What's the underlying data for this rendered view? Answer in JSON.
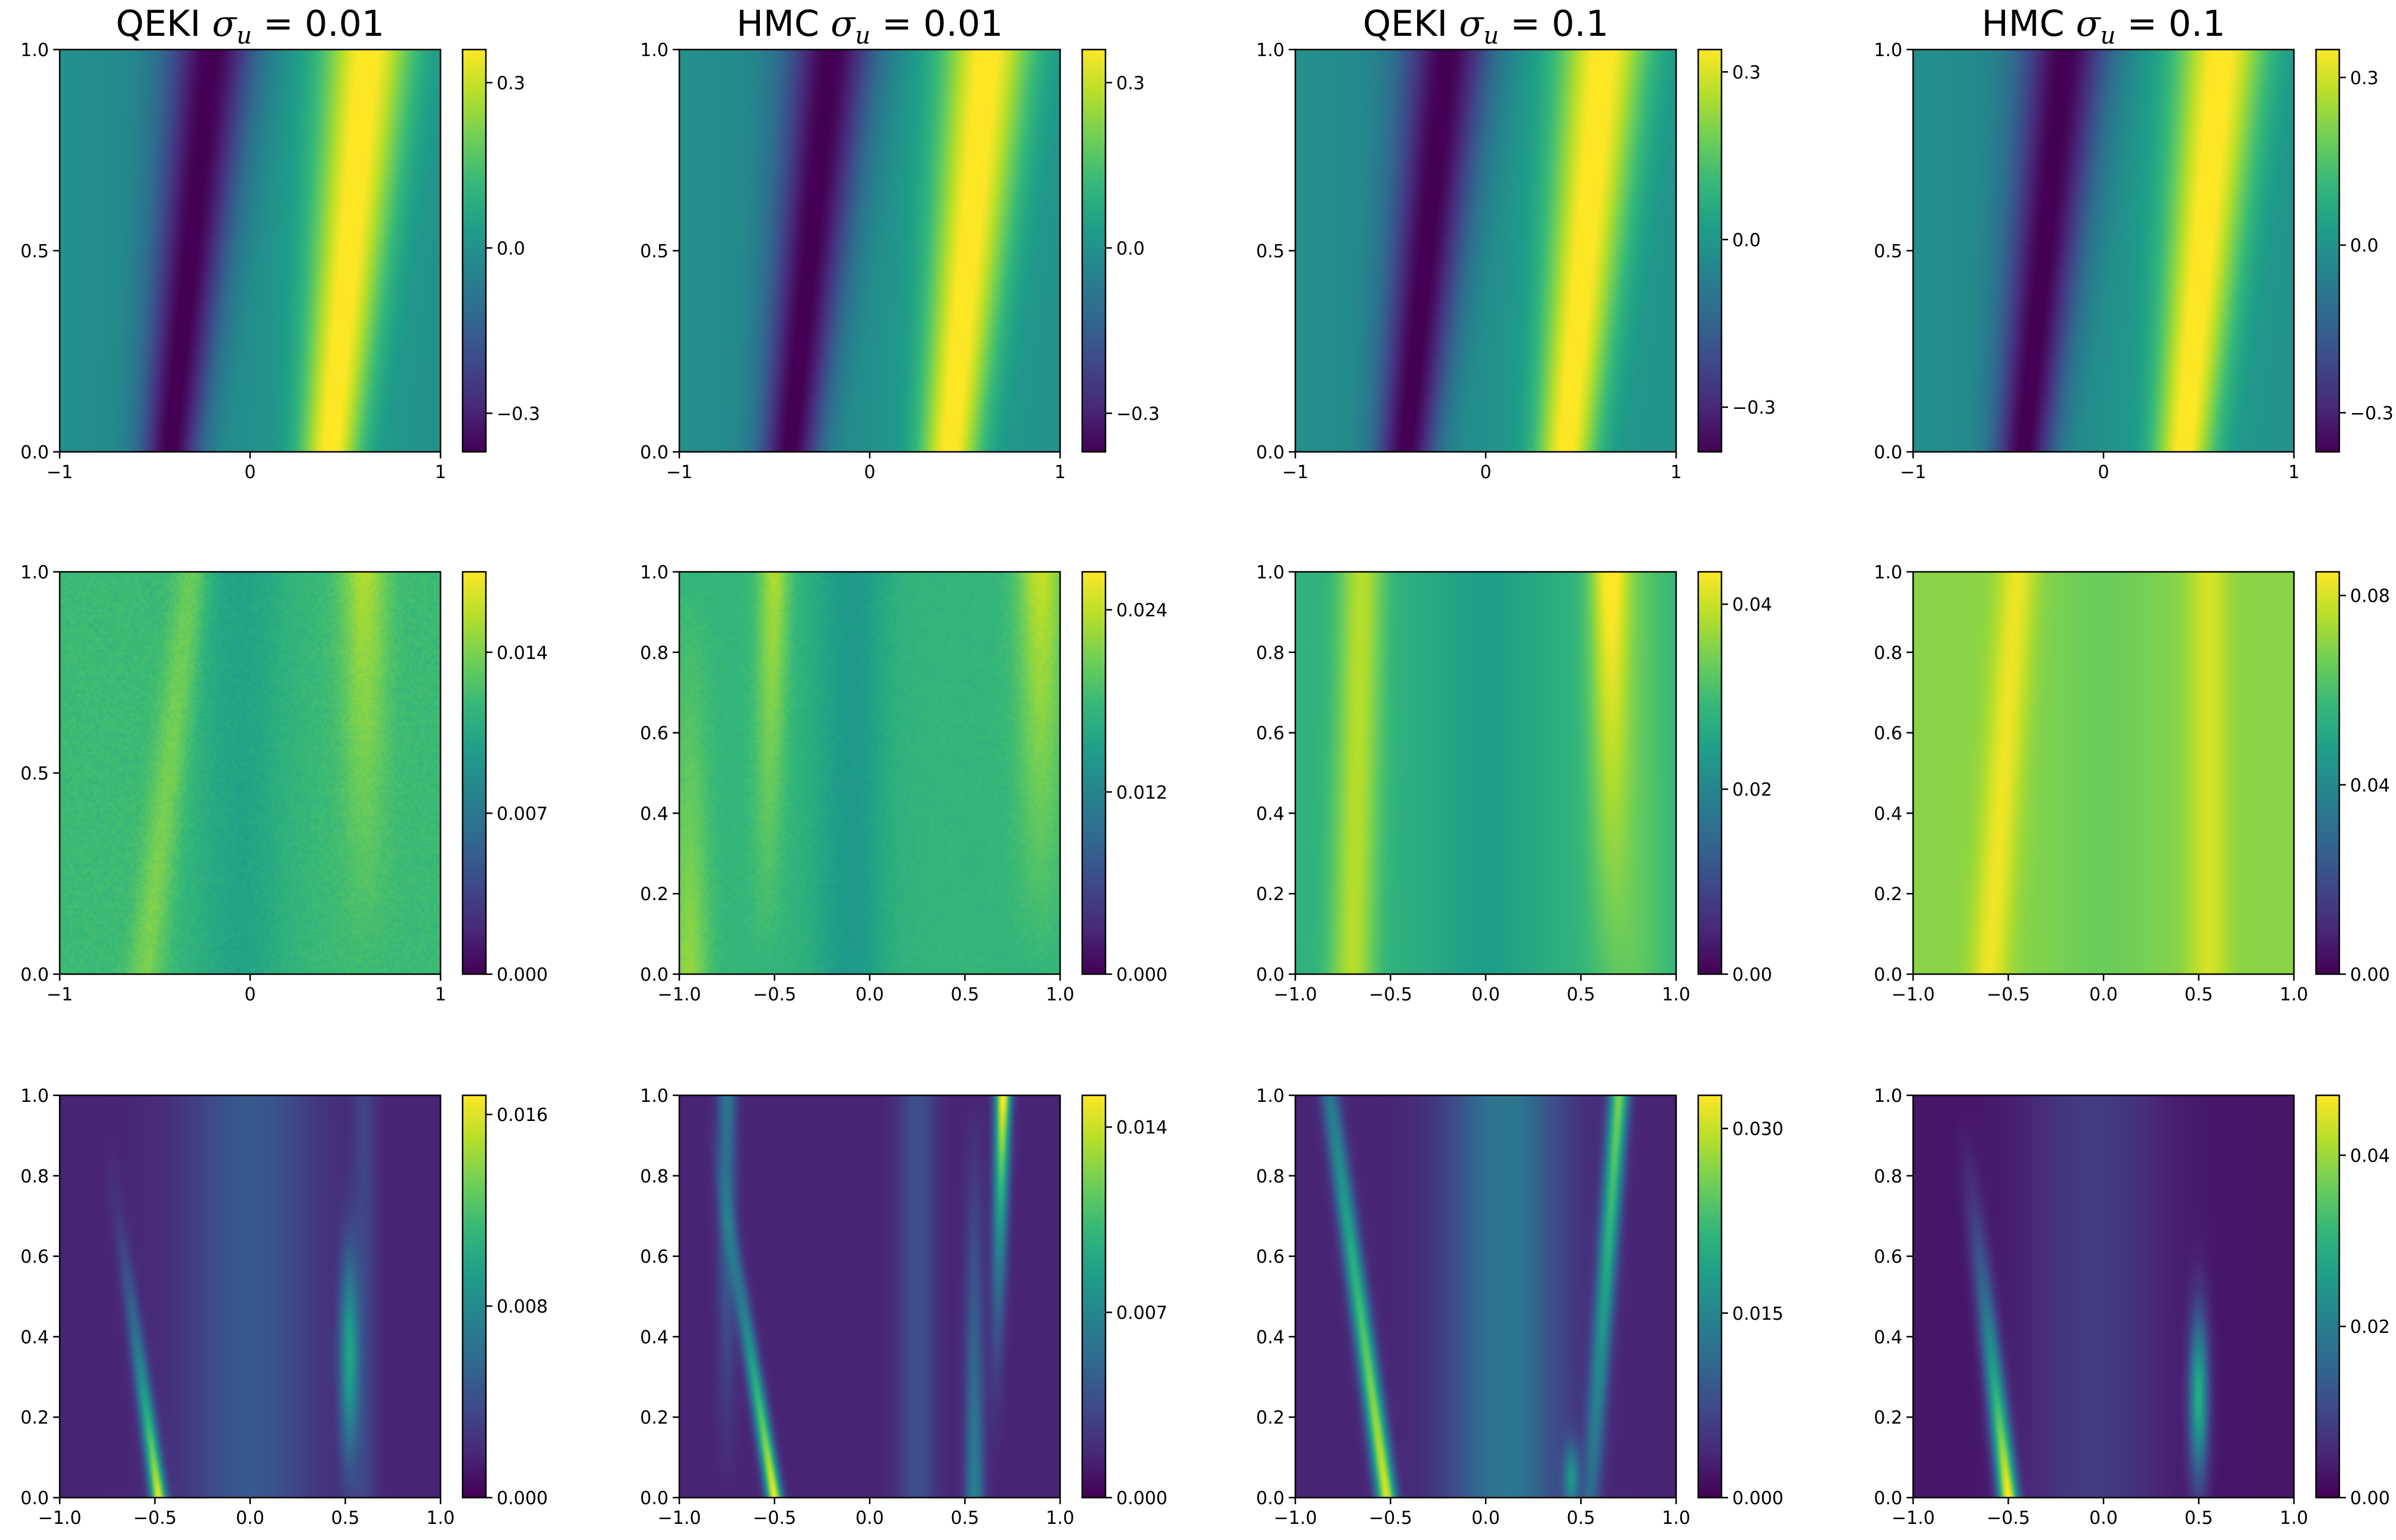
{
  "chart_data": [
    {
      "type": "heatmap",
      "row": 0,
      "col": 0,
      "title_prefix": "QEKI",
      "sigma_value": "0.01",
      "field": "mean",
      "xticks": [
        "−1",
        "0",
        "1"
      ],
      "yticks": [
        "0.0",
        "0.5",
        "1.0"
      ],
      "cbar_ticks": [
        {
          "v": 0.3,
          "l": "0.3"
        },
        {
          "v": 0.0,
          "l": "0.0"
        },
        {
          "v": -0.3,
          "l": "−0.3"
        }
      ],
      "cbar_range": [
        -0.37,
        0.36
      ]
    },
    {
      "type": "heatmap",
      "row": 0,
      "col": 1,
      "title_prefix": "HMC",
      "sigma_value": "0.01",
      "field": "mean",
      "xticks": [
        "−1",
        "0",
        "1"
      ],
      "yticks": [
        "0.0",
        "0.5",
        "1.0"
      ],
      "cbar_ticks": [
        {
          "v": 0.3,
          "l": "0.3"
        },
        {
          "v": 0.0,
          "l": "0.0"
        },
        {
          "v": -0.3,
          "l": "−0.3"
        }
      ],
      "cbar_range": [
        -0.37,
        0.36
      ]
    },
    {
      "type": "heatmap",
      "row": 0,
      "col": 2,
      "title_prefix": "QEKI",
      "sigma_value": "0.1",
      "field": "mean",
      "xticks": [
        "−1",
        "0",
        "1"
      ],
      "yticks": [
        "0.0",
        "0.5",
        "1.0"
      ],
      "cbar_ticks": [
        {
          "v": 0.3,
          "l": "0.3"
        },
        {
          "v": 0.0,
          "l": "0.0"
        },
        {
          "v": -0.3,
          "l": "−0.3"
        }
      ],
      "cbar_range": [
        -0.38,
        0.34
      ]
    },
    {
      "type": "heatmap",
      "row": 0,
      "col": 3,
      "title_prefix": "HMC",
      "sigma_value": "0.1",
      "field": "mean",
      "xticks": [
        "−1",
        "0",
        "1"
      ],
      "yticks": [
        "0.0",
        "0.5",
        "1.0"
      ],
      "cbar_ticks": [
        {
          "v": 0.3,
          "l": "0.3"
        },
        {
          "v": 0.0,
          "l": "0.0"
        },
        {
          "v": -0.3,
          "l": "−0.3"
        }
      ],
      "cbar_range": [
        -0.37,
        0.35
      ]
    },
    {
      "type": "heatmap",
      "row": 1,
      "col": 0,
      "field": "std_a",
      "xticks": [
        "−1",
        "0",
        "1"
      ],
      "yticks": [
        "0.0",
        "0.5",
        "1.0"
      ],
      "cbar_ticks": [
        {
          "v": 0.0,
          "l": "0.000"
        },
        {
          "v": 0.007,
          "l": "0.007"
        },
        {
          "v": 0.014,
          "l": "0.014"
        }
      ],
      "cbar_range": [
        0,
        0.0175
      ]
    },
    {
      "type": "heatmap",
      "row": 1,
      "col": 1,
      "field": "std_b",
      "xticks": [
        "−1.0",
        "−0.5",
        "0.0",
        "0.5",
        "1.0"
      ],
      "yticks": [
        "0.0",
        "0.2",
        "0.4",
        "0.6",
        "0.8",
        "1.0"
      ],
      "cbar_ticks": [
        {
          "v": 0.0,
          "l": "0.000"
        },
        {
          "v": 0.012,
          "l": "0.012"
        },
        {
          "v": 0.024,
          "l": "0.024"
        }
      ],
      "cbar_range": [
        0,
        0.0265
      ]
    },
    {
      "type": "heatmap",
      "row": 1,
      "col": 2,
      "field": "std_c",
      "xticks": [
        "−1.0",
        "−0.5",
        "0.0",
        "0.5",
        "1.0"
      ],
      "yticks": [
        "0.0",
        "0.2",
        "0.4",
        "0.6",
        "0.8",
        "1.0"
      ],
      "cbar_ticks": [
        {
          "v": 0.0,
          "l": "0.00"
        },
        {
          "v": 0.02,
          "l": "0.02"
        },
        {
          "v": 0.04,
          "l": "0.04"
        }
      ],
      "cbar_range": [
        0,
        0.0435
      ]
    },
    {
      "type": "heatmap",
      "row": 1,
      "col": 3,
      "field": "std_d",
      "xticks": [
        "−1.0",
        "−0.5",
        "0.0",
        "0.5",
        "1.0"
      ],
      "yticks": [
        "0.0",
        "0.2",
        "0.4",
        "0.6",
        "0.8",
        "1.0"
      ],
      "cbar_ticks": [
        {
          "v": 0.0,
          "l": "0.00"
        },
        {
          "v": 0.04,
          "l": "0.04"
        },
        {
          "v": 0.08,
          "l": "0.08"
        }
      ],
      "cbar_range": [
        0,
        0.085
      ]
    },
    {
      "type": "heatmap",
      "row": 2,
      "col": 0,
      "field": "err_a",
      "xticks": [
        "−1.0",
        "−0.5",
        "0.0",
        "0.5",
        "1.0"
      ],
      "yticks": [
        "0.0",
        "0.2",
        "0.4",
        "0.6",
        "0.8",
        "1.0"
      ],
      "cbar_ticks": [
        {
          "v": 0.0,
          "l": "0.000"
        },
        {
          "v": 0.008,
          "l": "0.008"
        },
        {
          "v": 0.016,
          "l": "0.016"
        }
      ],
      "cbar_range": [
        0,
        0.0168
      ]
    },
    {
      "type": "heatmap",
      "row": 2,
      "col": 1,
      "field": "err_b",
      "xticks": [
        "−1.0",
        "−0.5",
        "0.0",
        "0.5",
        "1.0"
      ],
      "yticks": [
        "0.0",
        "0.2",
        "0.4",
        "0.6",
        "0.8",
        "1.0"
      ],
      "cbar_ticks": [
        {
          "v": 0.0,
          "l": "0.000"
        },
        {
          "v": 0.007,
          "l": "0.007"
        },
        {
          "v": 0.014,
          "l": "0.014"
        }
      ],
      "cbar_range": [
        0,
        0.0152
      ]
    },
    {
      "type": "heatmap",
      "row": 2,
      "col": 2,
      "field": "err_c",
      "xticks": [
        "−1.0",
        "−0.5",
        "0.0",
        "0.5",
        "1.0"
      ],
      "yticks": [
        "0.0",
        "0.2",
        "0.4",
        "0.6",
        "0.8",
        "1.0"
      ],
      "cbar_ticks": [
        {
          "v": 0.0,
          "l": "0.000"
        },
        {
          "v": 0.015,
          "l": "0.015"
        },
        {
          "v": 0.03,
          "l": "0.030"
        }
      ],
      "cbar_range": [
        0,
        0.0327
      ]
    },
    {
      "type": "heatmap",
      "row": 2,
      "col": 3,
      "field": "err_d",
      "xticks": [
        "−1.0",
        "−0.5",
        "0.0",
        "0.5",
        "1.0"
      ],
      "yticks": [
        "0.0",
        "0.2",
        "0.4",
        "0.6",
        "0.8",
        "1.0"
      ],
      "cbar_ticks": [
        {
          "v": 0.0,
          "l": "0.00"
        },
        {
          "v": 0.02,
          "l": "0.02"
        },
        {
          "v": 0.04,
          "l": "0.04"
        }
      ],
      "cbar_range": [
        0,
        0.047
      ]
    }
  ],
  "sigma_symbol": "σ",
  "sigma_subscript": "u",
  "equals": "=",
  "x_range": [
    -1,
    1
  ],
  "y_range": [
    0,
    1
  ],
  "colormap": [
    "#440154",
    "#482878",
    "#3e4989",
    "#31688e",
    "#26828e",
    "#1f9e89",
    "#35b779",
    "#6ece58",
    "#b5de2b",
    "#fde725"
  ]
}
